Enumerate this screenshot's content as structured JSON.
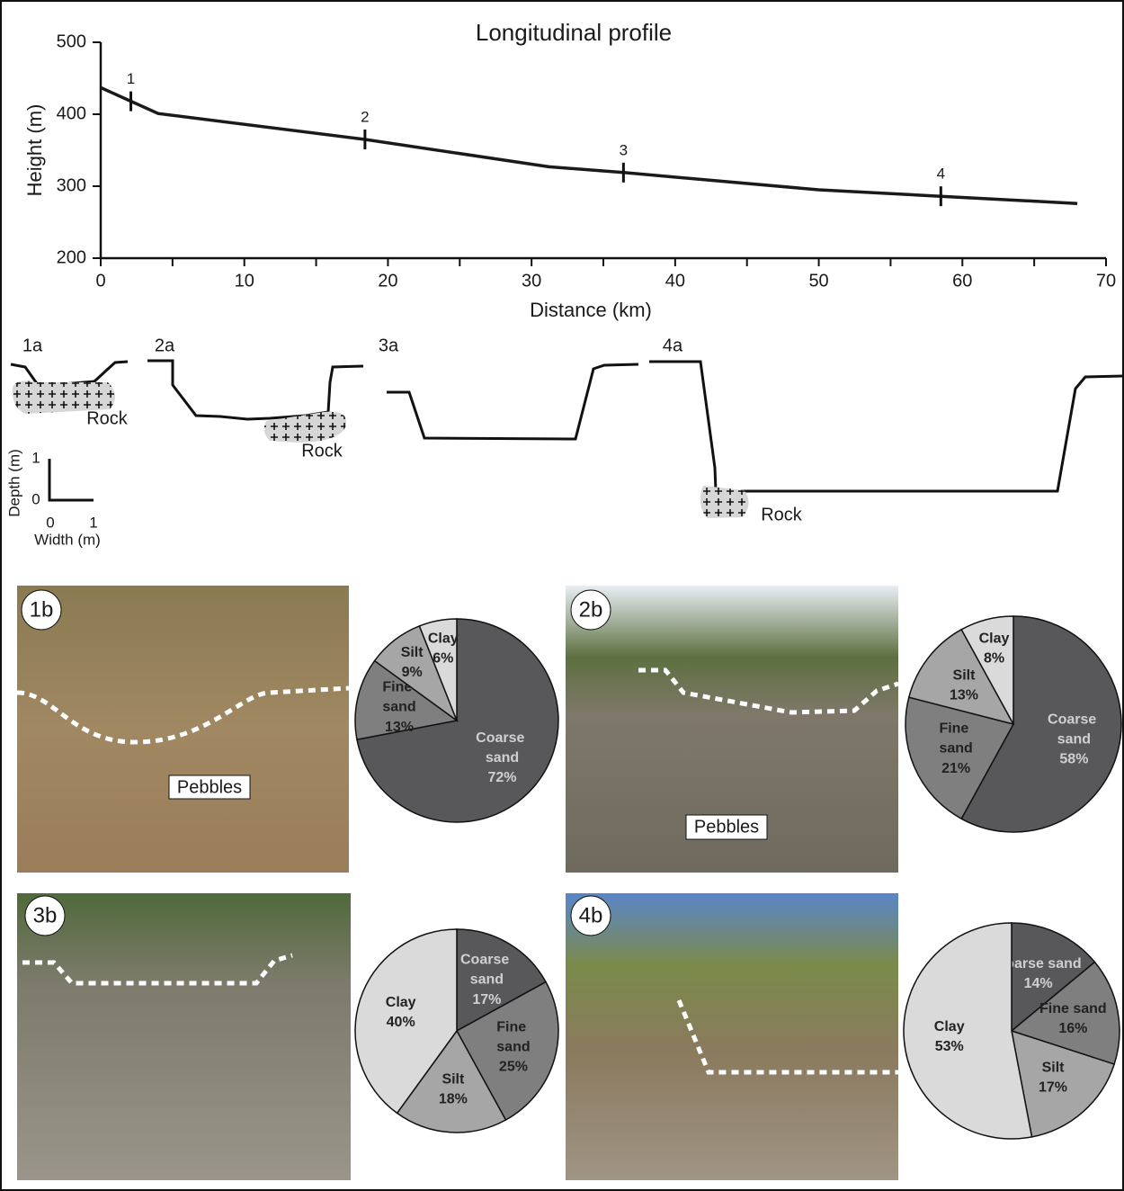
{
  "chart_data": [
    {
      "type": "line",
      "title": "Longitudinal profile",
      "x_label": "Distance (km)",
      "y_label": "Height (m)",
      "x": [
        0,
        4,
        18.4,
        31.2,
        36.4,
        50,
        58.5,
        68
      ],
      "values": [
        437,
        401,
        365,
        327,
        319,
        295,
        286,
        276
      ],
      "color": "#1a1a1a",
      "xlim": [
        0,
        70
      ],
      "xticks": [
        0,
        10,
        20,
        30,
        40,
        50,
        60,
        70
      ],
      "xminorticks": [
        5,
        15,
        25,
        35,
        45,
        55,
        65
      ],
      "ylim": [
        200,
        500
      ],
      "yticks": [
        200,
        300,
        400,
        500
      ],
      "markers": [
        {
          "label": "1",
          "x": 2.1,
          "y": 418
        },
        {
          "label": "2",
          "x": 18.4,
          "y": 365
        },
        {
          "label": "3",
          "x": 36.4,
          "y": 319
        },
        {
          "label": "4",
          "x": 58.5,
          "y": 286
        }
      ]
    },
    {
      "type": "pie",
      "categories": [
        "Coarse sand",
        "Fine sand",
        "Silt",
        "Clay"
      ],
      "values": [
        72,
        13,
        9,
        6
      ],
      "value_labels": [
        "72%",
        "13%",
        "9%",
        "6%"
      ],
      "colors": [
        "#58585a",
        "#7f7f7f",
        "#a6a6a6",
        "#dadada"
      ]
    },
    {
      "type": "pie",
      "categories": [
        "Coarse sand",
        "Fine sand",
        "Silt",
        "Clay"
      ],
      "values": [
        58,
        21,
        13,
        8
      ],
      "value_labels": [
        "58%",
        "21%",
        "13%",
        "8%"
      ],
      "colors": [
        "#58585a",
        "#7f7f7f",
        "#a6a6a6",
        "#dadada"
      ]
    },
    {
      "type": "pie",
      "categories": [
        "Coarse sand",
        "Fine sand",
        "Silt",
        "Clay"
      ],
      "values": [
        17,
        25,
        18,
        40
      ],
      "value_labels": [
        "17%",
        "25%",
        "18%",
        "40%"
      ],
      "colors": [
        "#58585a",
        "#7f7f7f",
        "#a6a6a6",
        "#dadada"
      ]
    },
    {
      "type": "pie",
      "categories": [
        "Coarse sand",
        "Fine sand",
        "Silt",
        "Clay"
      ],
      "values": [
        14,
        16,
        17,
        53
      ],
      "value_labels": [
        "14%",
        "16%",
        "17%",
        "53%"
      ],
      "colors": [
        "#58585a",
        "#7f7f7f",
        "#a6a6a6",
        "#dadada"
      ]
    }
  ],
  "cross_sections": {
    "panels": [
      {
        "label": "1a",
        "rock": "Rock"
      },
      {
        "label": "2a",
        "rock": "Rock"
      },
      {
        "label": "3a"
      },
      {
        "label": "4a",
        "rock": "Rock"
      }
    ],
    "scale": {
      "y_label": "Depth (m)",
      "x_label": "Width (m)",
      "yticks": [
        0,
        1
      ],
      "xticks": [
        0,
        1
      ]
    }
  },
  "photos": [
    {
      "label": "1b",
      "annotation": "Pebbles"
    },
    {
      "label": "2b",
      "annotation": "Pebbles"
    },
    {
      "label": "3b"
    },
    {
      "label": "4b"
    }
  ]
}
